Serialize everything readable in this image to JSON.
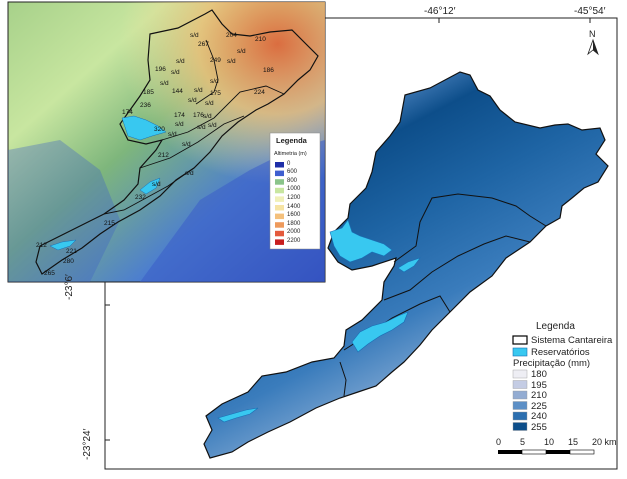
{
  "main_map": {
    "coords_top": [
      "-46°12′",
      "-45°54′"
    ],
    "coords_left": [
      "-23°6′",
      "-23°24′"
    ],
    "north_label": "N"
  },
  "legend": {
    "title": "Legenda",
    "items": [
      {
        "label": "Sistema Cantareira",
        "color": "#ffffff"
      },
      {
        "label": "Reservatórios",
        "color": "#38c8f0"
      }
    ],
    "precip_title": "Precipitação (mm)",
    "precip": [
      {
        "value": "180",
        "color": "#eeeef4"
      },
      {
        "value": "195",
        "color": "#c4cce4"
      },
      {
        "value": "210",
        "color": "#93acd2"
      },
      {
        "value": "225",
        "color": "#5c8fc6"
      },
      {
        "value": "240",
        "color": "#2c6fb0"
      },
      {
        "value": "255",
        "color": "#0d4e8a"
      }
    ]
  },
  "scale_bar": {
    "ticks": [
      "0",
      "5",
      "10",
      "15",
      "20 km"
    ]
  },
  "inset": {
    "legend_title": "Legenda",
    "legend_subtitle": "Altimetria (m)",
    "altimetry": [
      {
        "value": "0",
        "color": "#1e2fa8"
      },
      {
        "value": "600",
        "color": "#3f5fd0"
      },
      {
        "value": "800",
        "color": "#8ac48a"
      },
      {
        "value": "1000",
        "color": "#c8e6a0"
      },
      {
        "value": "1200",
        "color": "#f0f0b8"
      },
      {
        "value": "1400",
        "color": "#f6e4a4"
      },
      {
        "value": "1600",
        "color": "#f4c07c"
      },
      {
        "value": "1800",
        "color": "#ee9a5c"
      },
      {
        "value": "2000",
        "color": "#e45a3c"
      },
      {
        "value": "2200",
        "color": "#c81e1e"
      }
    ],
    "station_labels": [
      "204",
      "210",
      "267",
      "196",
      "249",
      "186",
      "224",
      "185",
      "144",
      "175",
      "236",
      "174",
      "174",
      "176",
      "320",
      "212",
      "232",
      "215",
      "212",
      "221",
      "280",
      "265"
    ],
    "sd_label": "s/d"
  }
}
